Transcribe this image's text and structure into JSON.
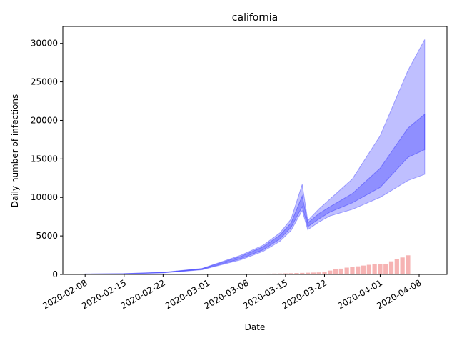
{
  "chart_data": {
    "type": "band",
    "title": "california",
    "x_label": "Date",
    "y_label": "Daily number of infections",
    "xlim": [
      "2020-02-04",
      "2020-04-13"
    ],
    "xticks": [
      "2020-02-08",
      "2020-02-15",
      "2020-02-22",
      "2020-03-01",
      "2020-03-08",
      "2020-03-15",
      "2020-03-22",
      "2020-04-01",
      "2020-04-08"
    ],
    "ylim": [
      0,
      32200
    ],
    "yticks": [
      0,
      5000,
      10000,
      15000,
      20000,
      25000,
      30000
    ],
    "x": [
      "2020-02-08",
      "2020-02-15",
      "2020-02-22",
      "2020-02-29",
      "2020-03-07",
      "2020-03-11",
      "2020-03-14",
      "2020-03-16",
      "2020-03-18",
      "2020-03-19",
      "2020-03-21",
      "2020-03-23",
      "2020-03-27",
      "2020-04-01",
      "2020-04-06",
      "2020-04-09"
    ],
    "bands": [
      {
        "color": "#0000ff",
        "upper": [
          60,
          110,
          280,
          780,
          2500,
          3800,
          5400,
          7200,
          11700,
          7000,
          8500,
          9800,
          12400,
          18000,
          26500,
          30500
        ],
        "lower": [
          40,
          80,
          200,
          600,
          1900,
          3000,
          4300,
          5700,
          8300,
          5800,
          6800,
          7600,
          8450,
          10000,
          12200,
          13000
        ]
      },
      {
        "color": "#0000ff",
        "upper": [
          55,
          100,
          260,
          740,
          2350,
          3600,
          5100,
          6700,
          10200,
          6700,
          7900,
          8800,
          10500,
          13800,
          19000,
          20800
        ],
        "lower": [
          45,
          90,
          220,
          650,
          2050,
          3200,
          4600,
          6100,
          8800,
          6200,
          7200,
          8100,
          9300,
          11300,
          15200,
          16200
        ]
      }
    ],
    "bars": {
      "color": "#f08080",
      "x": [
        "2020-03-05",
        "2020-03-06",
        "2020-03-07",
        "2020-03-08",
        "2020-03-09",
        "2020-03-10",
        "2020-03-11",
        "2020-03-12",
        "2020-03-13",
        "2020-03-14",
        "2020-03-15",
        "2020-03-16",
        "2020-03-17",
        "2020-03-18",
        "2020-03-19",
        "2020-03-20",
        "2020-03-21",
        "2020-03-22",
        "2020-03-23",
        "2020-03-24",
        "2020-03-25",
        "2020-03-26",
        "2020-03-27",
        "2020-03-28",
        "2020-03-29",
        "2020-03-30",
        "2020-03-31",
        "2020-04-01",
        "2020-04-02",
        "2020-04-03",
        "2020-04-04",
        "2020-04-05",
        "2020-04-06"
      ],
      "values": [
        30,
        40,
        50,
        60,
        70,
        80,
        90,
        100,
        110,
        120,
        140,
        160,
        180,
        200,
        220,
        240,
        260,
        330,
        500,
        650,
        750,
        880,
        980,
        1050,
        1150,
        1250,
        1330,
        1380,
        1380,
        1700,
        1950,
        2200,
        2480
      ]
    }
  }
}
